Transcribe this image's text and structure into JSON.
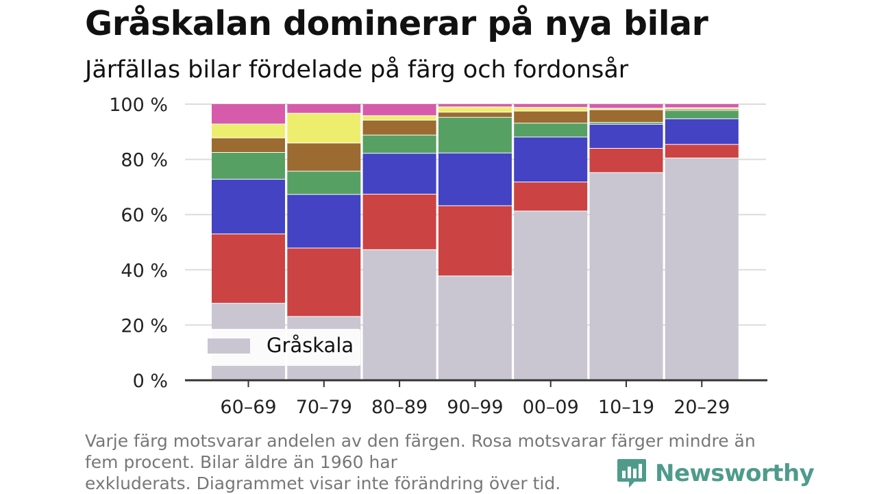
{
  "header": {
    "title": "Gråskalan dominerar på nya bilar",
    "subtitle": "Järfällas bilar fördelade på färg och fordonsår"
  },
  "chart_data": {
    "type": "bar",
    "stacked": true,
    "categories": [
      "60–69",
      "70–79",
      "80–89",
      "90–99",
      "00–09",
      "10–19",
      "20–29"
    ],
    "series": [
      {
        "name": "Gråskala",
        "color": "#c9c6d2",
        "values": [
          27.9,
          23.1,
          47.3,
          37.8,
          61.3,
          75.2,
          80.5
        ]
      },
      {
        "color": "#cc4343",
        "values": [
          25.1,
          24.8,
          20.1,
          25.4,
          10.5,
          8.8,
          4.9
        ]
      },
      {
        "color": "#4343c4",
        "values": [
          19.8,
          19.4,
          14.8,
          19.1,
          16.3,
          8.7,
          9.3
        ]
      },
      {
        "color": "#57a063",
        "values": [
          9.7,
          8.4,
          6.6,
          12.9,
          5.0,
          0.7,
          3.0
        ]
      },
      {
        "color": "#9b6b31",
        "values": [
          5.3,
          10.2,
          5.4,
          1.9,
          4.4,
          4.6,
          0.5
        ]
      },
      {
        "color": "#eeee6e",
        "values": [
          5.0,
          10.8,
          1.6,
          1.9,
          1.3,
          0.5,
          0.5
        ]
      },
      {
        "color": "#d65bab",
        "values": [
          7.2,
          3.3,
          4.2,
          1.0,
          1.2,
          1.5,
          1.3
        ]
      }
    ],
    "yticks": [
      "0 %",
      "20 %",
      "40 %",
      "60 %",
      "80 %",
      "100 %"
    ],
    "ylim": [
      0,
      100
    ],
    "legend": {
      "label": "Gråskala",
      "position": "bottom-left"
    }
  },
  "footer": {
    "note_lines": [
      "Varje färg motsvarar andelen av den färgen. Rosa motsvarar färger mindre än",
      "fem procent. Bilar äldre än 1960 har",
      "exkluderats. Diagrammet visar inte förändring över tid."
    ],
    "brand": "Newsworthy",
    "brand_color": "#4e9b8b"
  }
}
